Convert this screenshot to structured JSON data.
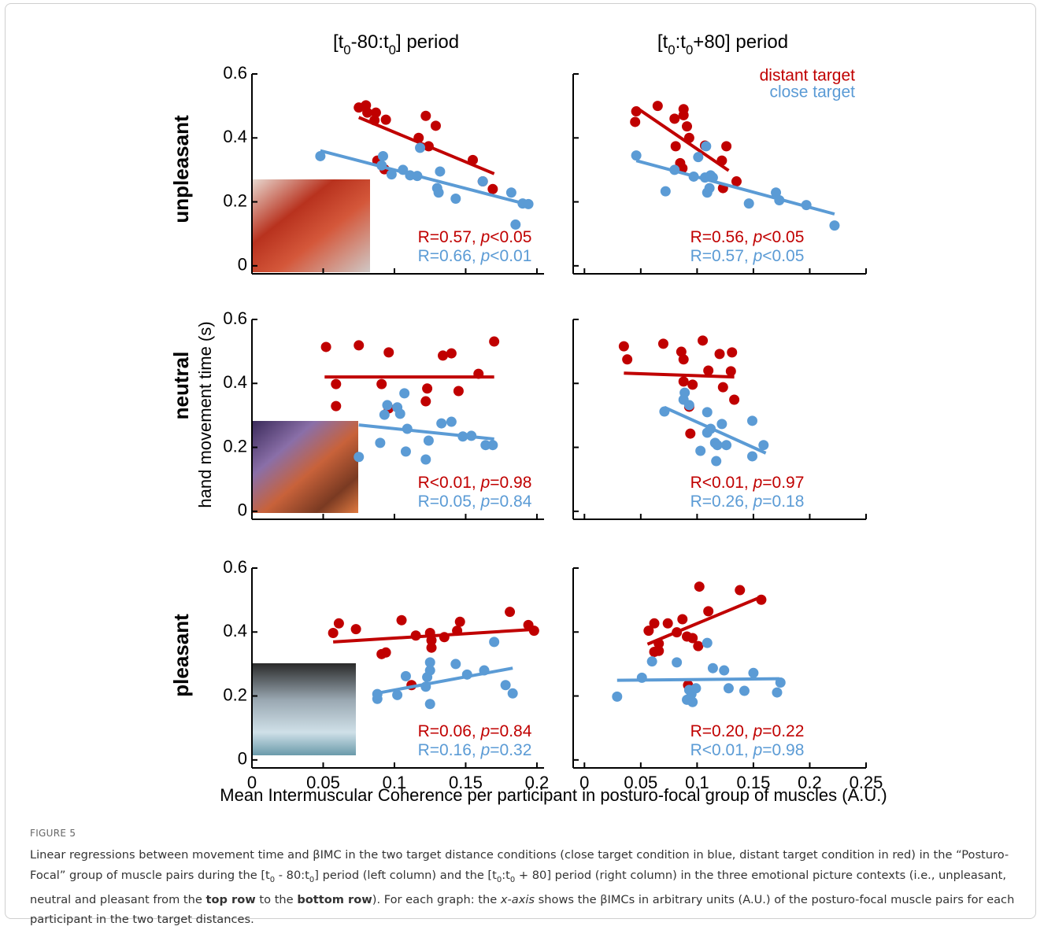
{
  "column_titles": [
    [
      {
        "text": "[t"
      },
      {
        "text": "0",
        "style": "sub"
      },
      {
        "text": "-80:t"
      },
      {
        "text": "0",
        "style": "sub"
      },
      {
        "text": "] period"
      }
    ],
    [
      {
        "text": "[t"
      },
      {
        "text": "0",
        "style": "sub"
      },
      {
        "text": ":t"
      },
      {
        "text": "0",
        "style": "sub"
      },
      {
        "text": "+80] period"
      }
    ]
  ],
  "row_labels": [
    "unpleasant",
    "neutral",
    "pleasant"
  ],
  "y_label": "hand movement time (s)",
  "x_label": "Mean Intermuscular Coherence per participant in posturo-focal group of muscles (A.U.)",
  "legend_chart": 1,
  "chart_data": [
    {
      "type": "scatter",
      "xlim": [
        0,
        0.205
      ],
      "ylim": [
        -0.025,
        0.6
      ],
      "xticks": [
        0,
        0.05,
        0.1,
        0.15,
        0.2
      ],
      "yticks": [
        0,
        0.2,
        0.4,
        0.6
      ],
      "xtick_labels": false,
      "ytick_labels": true,
      "series": [
        {
          "name": "distant target",
          "color": "#c00000",
          "x": [
            0.075,
            0.08,
            0.081,
            0.087,
            0.086,
            0.094,
            0.088,
            0.093,
            0.122,
            0.129,
            0.117,
            0.124,
            0.155,
            0.162,
            0.169
          ],
          "values": [
            0.495,
            0.502,
            0.479,
            0.479,
            0.455,
            0.457,
            0.329,
            0.302,
            0.469,
            0.438,
            0.4,
            0.374,
            0.331,
            0.264,
            0.24
          ],
          "fit_x": [
            0.075,
            0.17
          ],
          "fit_y": [
            0.464,
            0.288
          ]
        },
        {
          "name": "close target",
          "color": "#5b9bd5",
          "x": [
            0.048,
            0.092,
            0.091,
            0.098,
            0.106,
            0.111,
            0.116,
            0.118,
            0.132,
            0.13,
            0.131,
            0.143,
            0.162,
            0.182,
            0.19,
            0.194,
            0.185
          ],
          "values": [
            0.343,
            0.343,
            0.314,
            0.286,
            0.3,
            0.283,
            0.281,
            0.369,
            0.295,
            0.243,
            0.229,
            0.21,
            0.264,
            0.229,
            0.195,
            0.193,
            0.129
          ],
          "fit_x": [
            0.048,
            0.195
          ],
          "fit_y": [
            0.36,
            0.19
          ]
        }
      ],
      "annotations": [
        [
          {
            "text": "R=0.57, "
          },
          {
            "text": "p",
            "style": "italic"
          },
          {
            "text": "<0.05"
          }
        ],
        [
          {
            "text": "R=0.66, "
          },
          {
            "text": "p",
            "style": "italic"
          },
          {
            "text": "<0.01"
          }
        ]
      ]
    },
    {
      "type": "scatter",
      "xlim": [
        -0.01,
        0.25
      ],
      "ylim": [
        -0.025,
        0.6
      ],
      "xticks": [
        0,
        0.05,
        0.1,
        0.15,
        0.2,
        0.25
      ],
      "yticks": [
        0,
        0.2,
        0.4,
        0.6
      ],
      "xtick_labels": false,
      "ytick_labels": false,
      "series": [
        {
          "name": "distant target",
          "color": "#c00000",
          "x": [
            0.045,
            0.046,
            0.065,
            0.08,
            0.088,
            0.088,
            0.091,
            0.093,
            0.081,
            0.085,
            0.087,
            0.107,
            0.122,
            0.126,
            0.123,
            0.135
          ],
          "values": [
            0.45,
            0.483,
            0.5,
            0.46,
            0.471,
            0.49,
            0.436,
            0.4,
            0.374,
            0.321,
            0.305,
            0.376,
            0.329,
            0.374,
            0.243,
            0.264
          ],
          "fit_x": [
            0.046,
            0.128
          ],
          "fit_y": [
            0.495,
            0.298
          ]
        },
        {
          "name": "close target",
          "color": "#5b9bd5",
          "x": [
            0.046,
            0.072,
            0.08,
            0.101,
            0.108,
            0.097,
            0.107,
            0.112,
            0.114,
            0.109,
            0.111,
            0.146,
            0.17,
            0.173,
            0.197,
            0.222
          ],
          "values": [
            0.345,
            0.233,
            0.3,
            0.34,
            0.374,
            0.279,
            0.276,
            0.283,
            0.276,
            0.229,
            0.243,
            0.195,
            0.229,
            0.205,
            0.19,
            0.126
          ],
          "fit_x": [
            0.046,
            0.222
          ],
          "fit_y": [
            0.329,
            0.162
          ]
        }
      ],
      "annotations": [
        [
          {
            "text": "R=0.56, "
          },
          {
            "text": "p",
            "style": "italic"
          },
          {
            "text": "<0.05"
          }
        ],
        [
          {
            "text": "R=0.57, "
          },
          {
            "text": "p",
            "style": "italic"
          },
          {
            "text": "<0.05"
          }
        ]
      ]
    },
    {
      "type": "scatter",
      "xlim": [
        0,
        0.205
      ],
      "ylim": [
        -0.025,
        0.6
      ],
      "xticks": [
        0,
        0.05,
        0.1,
        0.15,
        0.2
      ],
      "yticks": [
        0,
        0.2,
        0.4,
        0.6
      ],
      "xtick_labels": false,
      "ytick_labels": true,
      "series": [
        {
          "name": "distant target",
          "color": "#c00000",
          "x": [
            0.052,
            0.059,
            0.059,
            0.075,
            0.091,
            0.096,
            0.096,
            0.123,
            0.122,
            0.134,
            0.14,
            0.145,
            0.159,
            0.17
          ],
          "values": [
            0.514,
            0.398,
            0.329,
            0.519,
            0.398,
            0.322,
            0.497,
            0.384,
            0.344,
            0.487,
            0.494,
            0.376,
            0.43,
            0.531
          ],
          "fit_x": [
            0.051,
            0.17
          ],
          "fit_y": [
            0.42,
            0.42
          ]
        },
        {
          "name": "close target",
          "color": "#5b9bd5",
          "x": [
            0.075,
            0.09,
            0.093,
            0.095,
            0.102,
            0.104,
            0.107,
            0.108,
            0.109,
            0.122,
            0.124,
            0.133,
            0.14,
            0.148,
            0.154,
            0.164,
            0.169
          ],
          "values": [
            0.17,
            0.214,
            0.302,
            0.332,
            0.325,
            0.305,
            0.369,
            0.187,
            0.258,
            0.162,
            0.221,
            0.275,
            0.28,
            0.234,
            0.236,
            0.207,
            0.207
          ],
          "fit_x": [
            0.075,
            0.17
          ],
          "fit_y": [
            0.27,
            0.226
          ]
        }
      ],
      "annotations": [
        [
          {
            "text": "R<0.01, "
          },
          {
            "text": "p",
            "style": "italic"
          },
          {
            "text": "=0.98"
          }
        ],
        [
          {
            "text": "R=0.05, "
          },
          {
            "text": "p",
            "style": "italic"
          },
          {
            "text": "=0.84"
          }
        ]
      ]
    },
    {
      "type": "scatter",
      "xlim": [
        -0.01,
        0.25
      ],
      "ylim": [
        -0.025,
        0.6
      ],
      "xticks": [
        0,
        0.05,
        0.1,
        0.15,
        0.2,
        0.25
      ],
      "yticks": [
        0,
        0.2,
        0.4,
        0.6
      ],
      "xtick_labels": false,
      "ytick_labels": false,
      "series": [
        {
          "name": "distant target",
          "color": "#c00000",
          "x": [
            0.035,
            0.038,
            0.07,
            0.086,
            0.088,
            0.088,
            0.093,
            0.096,
            0.105,
            0.11,
            0.12,
            0.123,
            0.13,
            0.131,
            0.133,
            0.094
          ],
          "values": [
            0.516,
            0.475,
            0.524,
            0.499,
            0.475,
            0.406,
            0.327,
            0.396,
            0.534,
            0.44,
            0.492,
            0.388,
            0.438,
            0.497,
            0.349,
            0.243
          ],
          "fit_x": [
            0.035,
            0.133
          ],
          "fit_y": [
            0.432,
            0.42
          ]
        },
        {
          "name": "close target",
          "color": "#5b9bd5",
          "x": [
            0.071,
            0.088,
            0.089,
            0.093,
            0.109,
            0.103,
            0.109,
            0.112,
            0.116,
            0.117,
            0.118,
            0.122,
            0.126,
            0.149,
            0.149,
            0.159
          ],
          "values": [
            0.312,
            0.349,
            0.371,
            0.332,
            0.31,
            0.189,
            0.246,
            0.258,
            0.214,
            0.157,
            0.207,
            0.273,
            0.207,
            0.283,
            0.172,
            0.207
          ],
          "fit_x": [
            0.071,
            0.161
          ],
          "fit_y": [
            0.325,
            0.182
          ]
        }
      ],
      "annotations": [
        [
          {
            "text": "R<0.01, "
          },
          {
            "text": "p",
            "style": "italic"
          },
          {
            "text": "=0.97"
          }
        ],
        [
          {
            "text": "R=0.26, "
          },
          {
            "text": "p",
            "style": "italic"
          },
          {
            "text": "=0.18"
          }
        ]
      ]
    },
    {
      "type": "scatter",
      "xlim": [
        0,
        0.205
      ],
      "ylim": [
        -0.025,
        0.6
      ],
      "xticks": [
        0,
        0.05,
        0.1,
        0.15,
        0.2
      ],
      "yticks": [
        0,
        0.2,
        0.4,
        0.6
      ],
      "xtick_labels": true,
      "ytick_labels": true,
      "series": [
        {
          "name": "distant target",
          "color": "#c00000",
          "x": [
            0.057,
            0.061,
            0.073,
            0.091,
            0.094,
            0.105,
            0.115,
            0.125,
            0.126,
            0.126,
            0.135,
            0.144,
            0.146,
            0.181,
            0.194,
            0.198,
            0.112
          ],
          "values": [
            0.397,
            0.427,
            0.409,
            0.331,
            0.336,
            0.437,
            0.389,
            0.397,
            0.351,
            0.374,
            0.384,
            0.404,
            0.432,
            0.463,
            0.422,
            0.404,
            0.234
          ],
          "fit_x": [
            0.057,
            0.201
          ],
          "fit_y": [
            0.369,
            0.409
          ]
        },
        {
          "name": "close target",
          "color": "#5b9bd5",
          "x": [
            0.088,
            0.088,
            0.102,
            0.108,
            0.123,
            0.122,
            0.125,
            0.125,
            0.125,
            0.143,
            0.151,
            0.163,
            0.17,
            0.178,
            0.183
          ],
          "values": [
            0.191,
            0.206,
            0.203,
            0.262,
            0.259,
            0.229,
            0.305,
            0.28,
            0.175,
            0.3,
            0.267,
            0.28,
            0.369,
            0.234,
            0.208
          ],
          "fit_x": [
            0.087,
            0.183
          ],
          "fit_y": [
            0.208,
            0.287
          ]
        }
      ],
      "annotations": [
        [
          {
            "text": "R=0.06, "
          },
          {
            "text": "p",
            "style": "italic"
          },
          {
            "text": "=0.84"
          }
        ],
        [
          {
            "text": "R=0.16, "
          },
          {
            "text": "p",
            "style": "italic"
          },
          {
            "text": "=0.32"
          }
        ]
      ]
    },
    {
      "type": "scatter",
      "xlim": [
        -0.01,
        0.25
      ],
      "ylim": [
        -0.025,
        0.6
      ],
      "xticks": [
        0,
        0.05,
        0.1,
        0.15,
        0.2,
        0.25
      ],
      "yticks": [
        0,
        0.2,
        0.4,
        0.6
      ],
      "xtick_labels": true,
      "ytick_labels": false,
      "series": [
        {
          "name": "distant target",
          "color": "#c00000",
          "x": [
            0.057,
            0.062,
            0.062,
            0.066,
            0.066,
            0.074,
            0.082,
            0.092,
            0.087,
            0.091,
            0.096,
            0.101,
            0.102,
            0.11,
            0.138,
            0.157
          ],
          "values": [
            0.404,
            0.427,
            0.338,
            0.341,
            0.364,
            0.427,
            0.399,
            0.234,
            0.44,
            0.386,
            0.381,
            0.356,
            0.542,
            0.465,
            0.531,
            0.501
          ],
          "fit_x": [
            0.056,
            0.157
          ],
          "fit_y": [
            0.362,
            0.51
          ]
        },
        {
          "name": "close target",
          "color": "#5b9bd5",
          "x": [
            0.029,
            0.06,
            0.082,
            0.091,
            0.093,
            0.095,
            0.096,
            0.099,
            0.109,
            0.114,
            0.124,
            0.128,
            0.142,
            0.15,
            0.171,
            0.174,
            0.051
          ],
          "values": [
            0.198,
            0.308,
            0.305,
            0.188,
            0.219,
            0.206,
            0.181,
            0.224,
            0.366,
            0.287,
            0.28,
            0.224,
            0.216,
            0.272,
            0.211,
            0.242,
            0.257
          ],
          "fit_x": [
            0.029,
            0.173
          ],
          "fit_y": [
            0.249,
            0.254
          ]
        }
      ],
      "annotations": [
        [
          {
            "text": "R=0.20, "
          },
          {
            "text": "p",
            "style": "italic"
          },
          {
            "text": "=0.22"
          }
        ],
        [
          {
            "text": "R<0.01, "
          },
          {
            "text": "p",
            "style": "italic"
          },
          {
            "text": "=0.98"
          }
        ]
      ]
    }
  ],
  "caption": {
    "label": "FIGURE 5",
    "text": [
      {
        "text": "Linear regressions between movement time and βIMC in the two target distance conditions (close target condition in blue, distant target condition in red) in the “Posturo-Focal” group of muscle pairs during the [t"
      },
      {
        "text": "0",
        "style": "sub"
      },
      {
        "text": " - 80:t"
      },
      {
        "text": "0",
        "style": "sub"
      },
      {
        "text": "] period (left column) and the [t"
      },
      {
        "text": "0",
        "style": "sub"
      },
      {
        "text": ":t"
      },
      {
        "text": "0",
        "style": "sub"
      },
      {
        "text": " + 80] period (right column) in the three emotional picture contexts (i.e., unpleasant, neutral and pleasant from the "
      },
      {
        "text": "top row",
        "style": "bold"
      },
      {
        "text": " to the "
      },
      {
        "text": "bottom row",
        "style": "bold"
      },
      {
        "text": "). For each graph: the "
      },
      {
        "text": "x-axis",
        "style": "italic"
      },
      {
        "text": " shows the βIMCs in arbitrary units (A.U.) of the posturo-focal muscle pairs for each participant in the two target distances."
      }
    ]
  }
}
